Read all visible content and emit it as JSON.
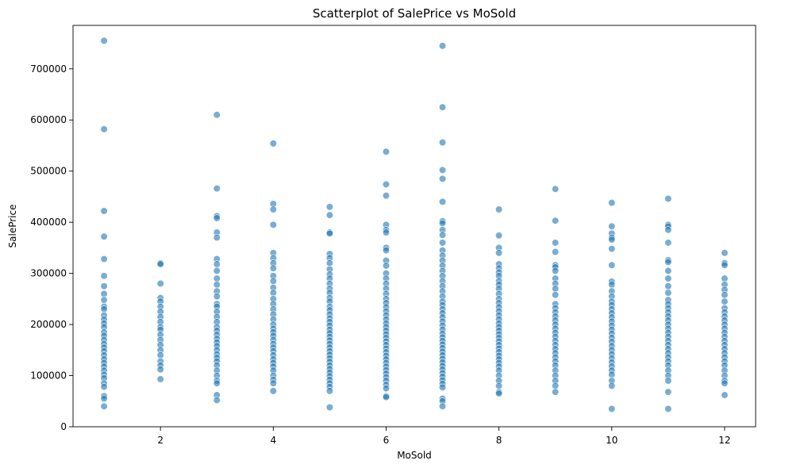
{
  "chart_data": {
    "type": "scatter",
    "title": "Scatterplot of SalePrice vs MoSold",
    "xlabel": "MoSold",
    "ylabel": "SalePrice",
    "xlim": [
      0.45,
      12.55
    ],
    "ylim": [
      0,
      785000
    ],
    "xticks": [
      2,
      4,
      6,
      8,
      10,
      12
    ],
    "yticks": [
      0,
      100000,
      200000,
      300000,
      400000,
      500000,
      600000,
      700000
    ],
    "grid": false,
    "color": "#1f77b4",
    "series": [
      {
        "x": 1,
        "y": [
          755000,
          582000,
          422000,
          372000,
          328000,
          295000,
          275000,
          260000,
          248000,
          235000,
          230000,
          218000,
          210000,
          202000,
          195000,
          185000,
          178000,
          170000,
          162000,
          155000,
          148000,
          140000,
          132000,
          125000,
          118000,
          110000,
          102000,
          95000,
          85000,
          78000,
          60000,
          55000,
          40000
        ]
      },
      {
        "x": 2,
        "y": [
          320000,
          318000,
          280000,
          252000,
          245000,
          235000,
          225000,
          215000,
          205000,
          195000,
          190000,
          180000,
          170000,
          160000,
          150000,
          140000,
          128000,
          120000,
          112000,
          93000
        ]
      },
      {
        "x": 3,
        "y": [
          610000,
          466000,
          412000,
          408000,
          380000,
          370000,
          328000,
          318000,
          305000,
          290000,
          278000,
          265000,
          255000,
          240000,
          235000,
          225000,
          215000,
          205000,
          195000,
          188000,
          180000,
          172000,
          165000,
          158000,
          150000,
          142000,
          135000,
          128000,
          120000,
          110000,
          100000,
          90000,
          85000,
          62000,
          52000
        ]
      },
      {
        "x": 4,
        "y": [
          554000,
          436000,
          425000,
          395000,
          340000,
          330000,
          320000,
          310000,
          295000,
          285000,
          272000,
          262000,
          250000,
          240000,
          230000,
          220000,
          210000,
          200000,
          192000,
          185000,
          178000,
          170000,
          162000,
          155000,
          148000,
          140000,
          132000,
          125000,
          118000,
          110000,
          100000,
          92000,
          85000,
          70000
        ]
      },
      {
        "x": 5,
        "y": [
          430000,
          414000,
          380000,
          378000,
          338000,
          330000,
          320000,
          308000,
          298000,
          290000,
          280000,
          270000,
          262000,
          252000,
          245000,
          235000,
          228000,
          220000,
          212000,
          205000,
          198000,
          190000,
          183000,
          176000,
          169000,
          162000,
          155000,
          148000,
          141000,
          134000,
          127000,
          120000,
          113000,
          106000,
          99000,
          92000,
          85000,
          78000,
          70000,
          38000
        ]
      },
      {
        "x": 6,
        "y": [
          538000,
          474000,
          452000,
          395000,
          385000,
          380000,
          350000,
          345000,
          325000,
          315000,
          300000,
          290000,
          280000,
          270000,
          260000,
          250000,
          242000,
          234000,
          226000,
          218000,
          210000,
          202000,
          195000,
          188000,
          181000,
          174000,
          167000,
          160000,
          153000,
          146000,
          139000,
          132000,
          125000,
          118000,
          111000,
          104000,
          97000,
          90000,
          82000,
          75000,
          60000,
          58000
        ]
      },
      {
        "x": 7,
        "y": [
          745000,
          625000,
          556000,
          502000,
          485000,
          440000,
          402000,
          398000,
          385000,
          375000,
          360000,
          345000,
          335000,
          325000,
          315000,
          305000,
          295000,
          285000,
          275000,
          265000,
          255000,
          245000,
          238000,
          230000,
          222000,
          214000,
          206000,
          198000,
          190000,
          182000,
          175000,
          168000,
          161000,
          154000,
          147000,
          140000,
          133000,
          126000,
          119000,
          112000,
          105000,
          98000,
          91000,
          84000,
          77000,
          55000,
          50000,
          40000
        ]
      },
      {
        "x": 8,
        "y": [
          425000,
          374000,
          350000,
          340000,
          318000,
          310000,
          302000,
          295000,
          285000,
          278000,
          270000,
          260000,
          250000,
          242000,
          234000,
          226000,
          218000,
          210000,
          202000,
          195000,
          188000,
          181000,
          174000,
          167000,
          160000,
          153000,
          146000,
          139000,
          132000,
          125000,
          118000,
          110000,
          100000,
          90000,
          80000,
          68000,
          65000
        ]
      },
      {
        "x": 9,
        "y": [
          465000,
          403000,
          360000,
          342000,
          316000,
          312000,
          305000,
          290000,
          280000,
          270000,
          258000,
          240000,
          232000,
          224000,
          216000,
          208000,
          200000,
          192000,
          184000,
          176000,
          168000,
          160000,
          152000,
          144000,
          136000,
          128000,
          120000,
          110000,
          100000,
          90000,
          80000,
          68000
        ]
      },
      {
        "x": 10,
        "y": [
          438000,
          392000,
          378000,
          370000,
          366000,
          348000,
          316000,
          284000,
          278000,
          265000,
          255000,
          245000,
          238000,
          230000,
          222000,
          214000,
          206000,
          198000,
          190000,
          182000,
          174000,
          166000,
          158000,
          150000,
          142000,
          134000,
          126000,
          118000,
          110000,
          102000,
          90000,
          80000,
          35000
        ]
      },
      {
        "x": 11,
        "y": [
          446000,
          395000,
          392000,
          385000,
          360000,
          326000,
          322000,
          305000,
          290000,
          275000,
          262000,
          248000,
          240000,
          232000,
          224000,
          216000,
          208000,
          200000,
          192000,
          184000,
          176000,
          168000,
          160000,
          152000,
          144000,
          136000,
          128000,
          120000,
          110000,
          100000,
          90000,
          68000,
          35000
        ]
      },
      {
        "x": 12,
        "y": [
          340000,
          320000,
          316000,
          290000,
          278000,
          268000,
          258000,
          245000,
          232000,
          224000,
          216000,
          208000,
          200000,
          192000,
          184000,
          176000,
          168000,
          160000,
          152000,
          144000,
          136000,
          128000,
          120000,
          110000,
          100000,
          90000,
          85000,
          62000
        ]
      }
    ]
  }
}
